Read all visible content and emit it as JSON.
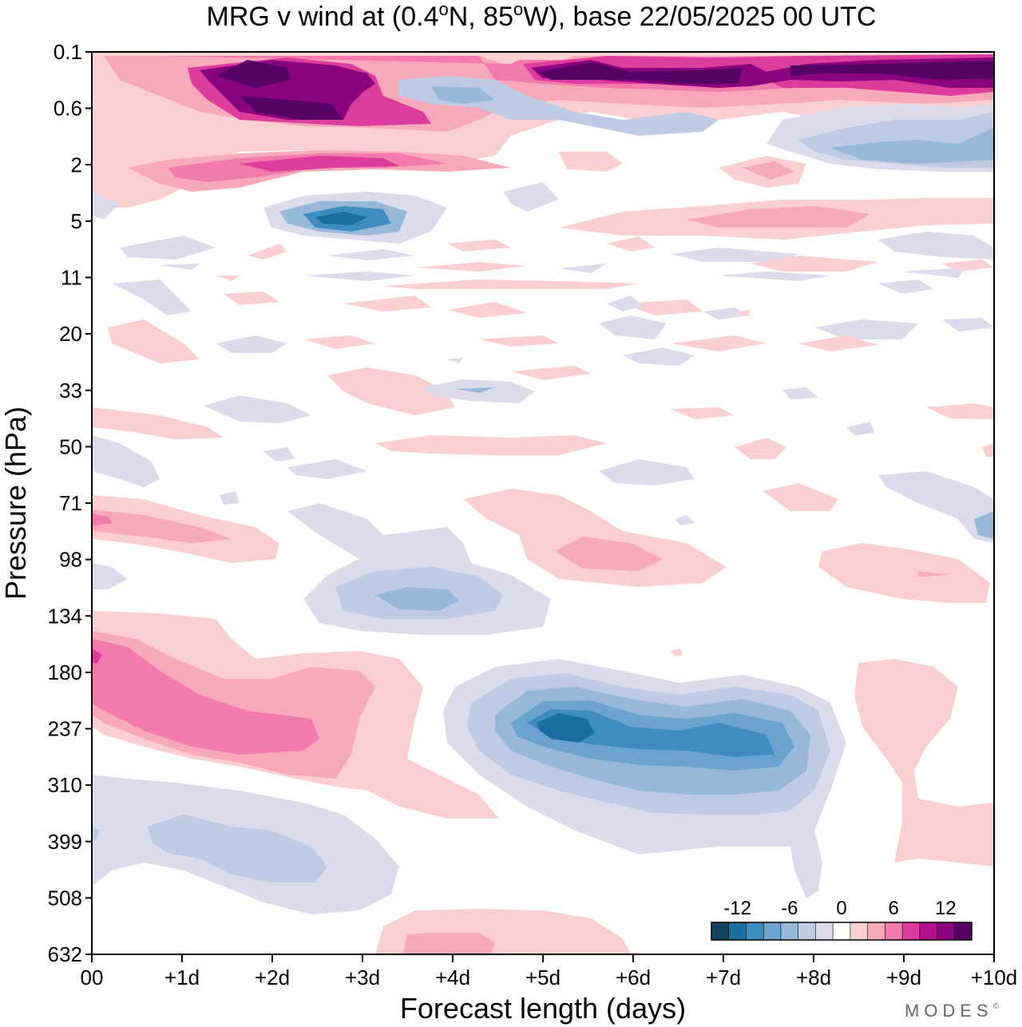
{
  "title_prefix": "MRG v wind at (0.4",
  "title_lat_suffix": "N, 85",
  "title_lon_suffix": "W),  base 22/05/2025  00 UTC",
  "title_degree_glyph": "o",
  "logo": "MODES",
  "logo_mark": "©",
  "chart_data": {
    "type": "heatmap",
    "variable": "MRG v wind",
    "location": "(0.4°N, 85°W)",
    "base_time": "22/05/2025 00 UTC",
    "xlabel": "Forecast length (days)",
    "ylabel": "Pressure (hPa)",
    "x_ticks": [
      "00",
      "+1d",
      "+2d",
      "+3d",
      "+4d",
      "+5d",
      "+6d",
      "+7d",
      "+8d",
      "+9d",
      "+10d"
    ],
    "xlim": [
      0,
      10
    ],
    "y_ticks": [
      "0.1",
      "0.6",
      "2",
      "5",
      "11",
      "20",
      "33",
      "50",
      "71",
      "98",
      "134",
      "180",
      "237",
      "310",
      "399",
      "508",
      "632"
    ],
    "colorbar": {
      "levels": [
        -12,
        -10,
        -8,
        -6,
        -4,
        -2,
        0,
        2,
        4,
        6,
        8,
        10,
        12
      ],
      "tick_labels": [
        "-12",
        "-6",
        "0",
        "6",
        "12"
      ],
      "colors": [
        "#13425f",
        "#1b6fa0",
        "#3f8cc0",
        "#6ba3cf",
        "#97b8d9",
        "#bfcae4",
        "#dcdbeb",
        "#ffffff",
        "#fbcfd2",
        "#f7a8bb",
        "#f27aac",
        "#dc3d9c",
        "#b3108e",
        "#8a037f",
        "#560164"
      ]
    },
    "features": [
      {
        "type": "max",
        "x": 1.5,
        "y": "0.1-0.6",
        "value": 14
      },
      {
        "type": "max",
        "x": 5.5,
        "y": "0.1-0.6",
        "value": 14
      },
      {
        "type": "min",
        "x": 2.7,
        "y": "5",
        "value": -10
      },
      {
        "type": "max",
        "x": 0.2,
        "y": "180-237",
        "value": 8
      },
      {
        "type": "min",
        "x": 5.2,
        "y": "237",
        "value": -11
      },
      {
        "type": "min",
        "x": 3.5,
        "y": "134",
        "value": -6
      },
      {
        "type": "min",
        "x": 1.8,
        "y": "399",
        "value": -4
      },
      {
        "type": "max",
        "x": 3.5,
        "y": "632",
        "value": 4
      }
    ]
  }
}
